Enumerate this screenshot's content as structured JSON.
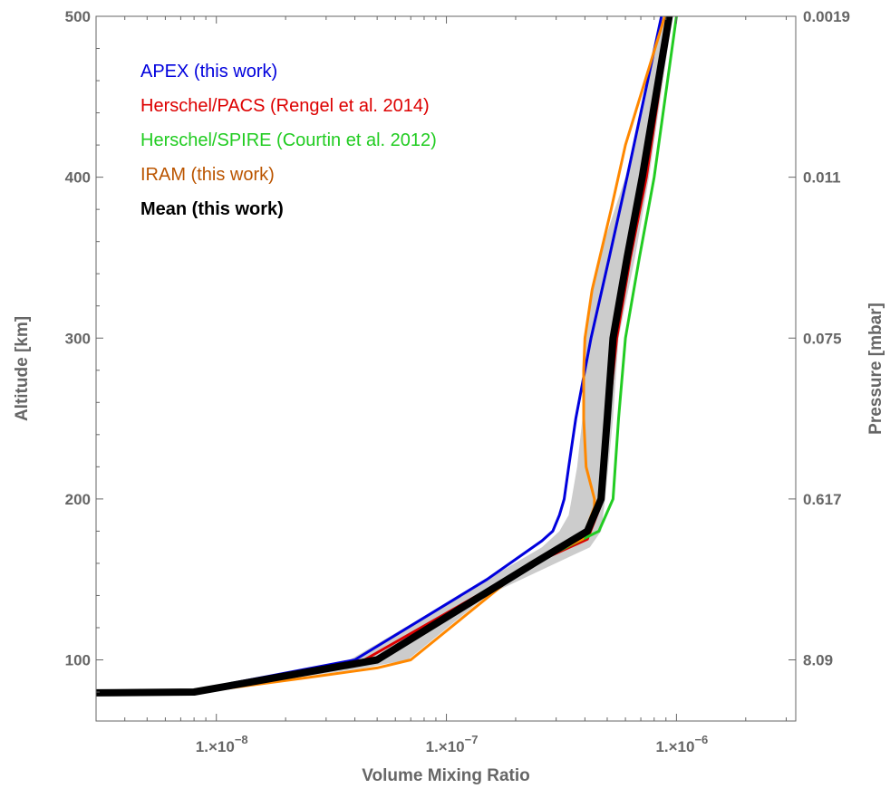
{
  "chart_data": {
    "type": "line",
    "title": "",
    "xlabel": "Volume Mixing Ratio",
    "ylabel": "Altitude [km]",
    "y2label": "Pressure  [mbar]",
    "xscale": "log",
    "xlim": [
      3e-09,
      3.3e-06
    ],
    "ylim": [
      62,
      500
    ],
    "grid": false,
    "legend_position": "top-left",
    "x_ticks": [
      {
        "value": 1e-08,
        "label": "1.×10"
      },
      {
        "value": 1e-07,
        "label": "1.×10"
      },
      {
        "value": 1e-06,
        "label": "1.×10"
      }
    ],
    "x_tick_exponents": [
      "−8",
      "−7",
      "−6"
    ],
    "y_ticks": [
      100,
      200,
      300,
      400,
      500
    ],
    "y2_ticks": [
      {
        "altitude": 100,
        "label": "8.09"
      },
      {
        "altitude": 200,
        "label": "0.617"
      },
      {
        "altitude": 300,
        "label": "0.075"
      },
      {
        "altitude": 400,
        "label": "0.011"
      },
      {
        "altitude": 500,
        "label": "0.0019"
      }
    ],
    "band": {
      "color": "#cccccc",
      "left": [
        [
          3e-09,
          80
        ],
        [
          8e-09,
          80
        ],
        [
          3.8e-08,
          100
        ],
        [
          1.5e-07,
          150
        ],
        [
          2.6e-07,
          170
        ],
        [
          3.1e-07,
          180
        ],
        [
          3.4e-07,
          190
        ],
        [
          3.5e-07,
          200
        ],
        [
          3.7e-07,
          220
        ],
        [
          3.9e-07,
          250
        ],
        [
          3.95e-07,
          300
        ],
        [
          4.6e-07,
          350
        ],
        [
          6e-07,
          400
        ],
        [
          8.8e-07,
          500
        ]
      ],
      "right": [
        [
          3e-09,
          80
        ],
        [
          8e-09,
          80
        ],
        [
          4.4e-08,
          95
        ],
        [
          6.8e-08,
          100
        ],
        [
          1.5e-07,
          140
        ],
        [
          4.2e-07,
          170
        ],
        [
          4.7e-07,
          180
        ],
        [
          4.9e-07,
          200
        ],
        [
          5.3e-07,
          250
        ],
        [
          5.6e-07,
          300
        ],
        [
          6.6e-07,
          350
        ],
        [
          7.6e-07,
          400
        ],
        [
          9.6e-07,
          500
        ]
      ]
    },
    "series": [
      {
        "name": "APEX (this work)",
        "color": "#0000dd",
        "width": 3,
        "points": [
          [
            3e-09,
            80
          ],
          [
            8e-09,
            81
          ],
          [
            4e-08,
            100
          ],
          [
            1.5e-07,
            150
          ],
          [
            2.6e-07,
            174
          ],
          [
            2.9e-07,
            180
          ],
          [
            3.1e-07,
            190
          ],
          [
            3.25e-07,
            200
          ],
          [
            3.4e-07,
            220
          ],
          [
            3.65e-07,
            250
          ],
          [
            4.25e-07,
            300
          ],
          [
            5.1e-07,
            350
          ],
          [
            6.1e-07,
            400
          ],
          [
            8.6e-07,
            500
          ]
        ]
      },
      {
        "name": "Herschel/PACS (Rengel et al. 2014)",
        "color": "#dd0000",
        "width": 3,
        "points": [
          [
            3e-09,
            79
          ],
          [
            8e-09,
            80
          ],
          [
            4.4e-08,
            100
          ],
          [
            2.4e-07,
            160
          ],
          [
            4.1e-07,
            175
          ],
          [
            4.8e-07,
            200
          ],
          [
            5.05e-07,
            250
          ],
          [
            5.5e-07,
            300
          ],
          [
            6.3e-07,
            350
          ],
          [
            7.4e-07,
            400
          ],
          [
            9.4e-07,
            500
          ]
        ]
      },
      {
        "name": "Herschel/SPIRE (Courtin et al. 2012)",
        "color": "#22cc22",
        "width": 3,
        "points": [
          [
            3e-09,
            80
          ],
          [
            8e-09,
            80
          ],
          [
            5.2e-08,
            100
          ],
          [
            2.4e-07,
            160
          ],
          [
            4.6e-07,
            180
          ],
          [
            5.3e-07,
            200
          ],
          [
            5.6e-07,
            250
          ],
          [
            6e-07,
            300
          ],
          [
            6.9e-07,
            350
          ],
          [
            8e-07,
            400
          ],
          [
            1e-06,
            500
          ]
        ]
      },
      {
        "name": "IRAM (this work)",
        "color": "#ff8800",
        "legend_color": "#bb5500",
        "width": 3,
        "points": [
          [
            3e-09,
            79
          ],
          [
            8e-09,
            79.5
          ],
          [
            2.5e-08,
            89
          ],
          [
            5e-08,
            95
          ],
          [
            7e-08,
            100
          ],
          [
            2.3e-07,
            160
          ],
          [
            3.9e-07,
            175
          ],
          [
            4.4e-07,
            195
          ],
          [
            4.4e-07,
            200
          ],
          [
            4.05e-07,
            220
          ],
          [
            3.95e-07,
            250
          ],
          [
            3.95e-07,
            280
          ],
          [
            4e-07,
            300
          ],
          [
            4.3e-07,
            330
          ],
          [
            5.2e-07,
            380
          ],
          [
            6e-07,
            420
          ],
          [
            8.9e-07,
            500
          ]
        ]
      },
      {
        "name": "Mean (this work)",
        "color": "#000000",
        "width": 8,
        "bold": true,
        "points": [
          [
            3e-09,
            79.5
          ],
          [
            8e-09,
            80
          ],
          [
            5e-08,
            100
          ],
          [
            2.4e-07,
            160
          ],
          [
            4.1e-07,
            180
          ],
          [
            4.7e-07,
            200
          ],
          [
            5e-07,
            250
          ],
          [
            5.3e-07,
            300
          ],
          [
            6.1e-07,
            350
          ],
          [
            7.1e-07,
            400
          ],
          [
            9.3e-07,
            500
          ]
        ]
      }
    ]
  }
}
